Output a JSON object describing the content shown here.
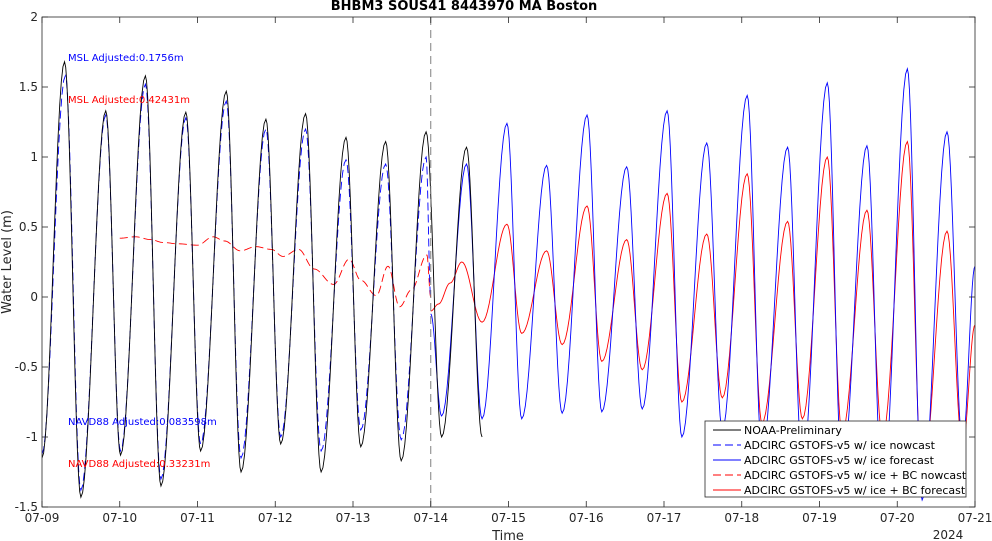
{
  "chart_data": {
    "type": "line",
    "title": "BHBM3 SOUS41 8443970 MA Boston",
    "xlabel": "Time",
    "ylabel": "Water Level (m)",
    "x_tick_labels": [
      "07-09",
      "07-10",
      "07-11",
      "07-12",
      "07-13",
      "07-14",
      "07-15",
      "07-16",
      "07-17",
      "07-18",
      "07-19",
      "07-20",
      "07-21"
    ],
    "x_secondary_label": "2024",
    "xlim_days": [
      0,
      12
    ],
    "ylim": [
      -1.5,
      2
    ],
    "y_ticks": [
      -1.5,
      -1,
      -0.5,
      0,
      0.5,
      1,
      1.5,
      2
    ],
    "y_tick_labels": [
      "-1.5",
      "-1",
      "-0.5",
      "0",
      "0.5",
      "1",
      "1.5",
      "2"
    ],
    "nowcast_forecast_divider": "07-14",
    "grid": false,
    "legend_position": "bottom-right",
    "annotations": [
      {
        "text": "MSL Adjusted:0.1756m",
        "color": "#0000ff"
      },
      {
        "text": "MSL Adjusted:0.42431m",
        "color": "#ff0000"
      },
      {
        "text": "NAVD88 Adjusted:0.083598m",
        "color": "#0000ff"
      },
      {
        "text": "NAVD88 Adjusted:0.33231m",
        "color": "#ff0000"
      }
    ],
    "series": [
      {
        "name": "NOAA-Preliminary",
        "color": "#000000",
        "dash": "solid",
        "x": [
          0.0,
          0.29,
          0.5,
          0.82,
          1.01,
          1.33,
          1.53,
          1.85,
          2.04,
          2.37,
          2.56,
          2.88,
          3.07,
          3.39,
          3.59,
          3.91,
          4.1,
          4.42,
          4.62,
          4.94,
          5.14,
          5.46,
          5.66
        ],
        "y": [
          -1.15,
          1.68,
          -1.43,
          1.33,
          -1.13,
          1.58,
          -1.35,
          1.32,
          -1.1,
          1.47,
          -1.25,
          1.27,
          -1.05,
          1.31,
          -1.25,
          1.14,
          -1.07,
          1.11,
          -1.17,
          1.18,
          -1.0,
          1.07,
          -1.0
        ]
      },
      {
        "name": "ADCIRC GSTOFS-v5 w/ ice nowcast",
        "color": "#0000ff",
        "dash": "dashed",
        "x": [
          0.0,
          0.3,
          0.5,
          0.82,
          1.01,
          1.33,
          1.53,
          1.85,
          2.04,
          2.37,
          2.56,
          2.88,
          3.07,
          3.39,
          3.59,
          3.91,
          4.1,
          4.42,
          4.62,
          4.94,
          5.0
        ],
        "y": [
          -1.12,
          1.58,
          -1.38,
          1.3,
          -1.1,
          1.52,
          -1.3,
          1.28,
          -1.05,
          1.4,
          -1.15,
          1.2,
          -1.0,
          1.2,
          -1.1,
          0.98,
          -0.95,
          0.95,
          -1.02,
          1.0,
          0.0
        ]
      },
      {
        "name": "ADCIRC GSTOFS-v5 w/ ice forecast",
        "color": "#0000ff",
        "dash": "solid",
        "x": [
          5.0,
          5.14,
          5.46,
          5.66,
          5.98,
          6.17,
          6.49,
          6.69,
          7.01,
          7.2,
          7.52,
          7.72,
          8.04,
          8.23,
          8.55,
          8.75,
          9.07,
          9.26,
          9.59,
          9.78,
          10.1,
          10.29,
          10.61,
          10.81,
          11.13,
          11.32,
          11.64,
          11.84,
          12.0
        ],
        "y": [
          -0.12,
          -0.85,
          0.95,
          -0.87,
          1.24,
          -0.87,
          0.94,
          -0.83,
          1.3,
          -0.82,
          0.93,
          -0.8,
          1.33,
          -1.0,
          1.1,
          -0.95,
          1.44,
          -1.1,
          1.07,
          -1.2,
          1.53,
          -1.25,
          1.08,
          -1.4,
          1.63,
          -1.45,
          1.18,
          -1.05,
          0.22
        ]
      },
      {
        "name": "ADCIRC GSTOFS-v5 w/ ice + BC nowcast",
        "color": "#ff0000",
        "dash": "dashed",
        "x": [
          1.0,
          1.2,
          1.4,
          1.55,
          1.75,
          2.0,
          2.2,
          2.35,
          2.55,
          2.75,
          2.95,
          3.1,
          3.3,
          3.5,
          3.75,
          3.95,
          4.1,
          4.3,
          4.45,
          4.6,
          4.75,
          4.95,
          5.0
        ],
        "y": [
          0.42,
          0.43,
          0.41,
          0.39,
          0.38,
          0.37,
          0.43,
          0.4,
          0.33,
          0.36,
          0.34,
          0.29,
          0.34,
          0.2,
          0.09,
          0.27,
          0.12,
          0.01,
          0.22,
          -0.07,
          0.05,
          0.3,
          0.0
        ]
      },
      {
        "name": "ADCIRC GSTOFS-v5 w/ ice + BC forecast",
        "color": "#ff0000",
        "dash": "solid",
        "x": [
          5.0,
          5.1,
          5.25,
          5.4,
          5.66,
          5.98,
          6.17,
          6.49,
          6.69,
          7.01,
          7.2,
          7.52,
          7.72,
          8.04,
          8.23,
          8.55,
          8.75,
          9.07,
          9.26,
          9.59,
          9.78,
          10.1,
          10.29,
          10.61,
          10.81,
          11.13,
          11.32,
          11.64,
          11.84,
          12.0
        ],
        "y": [
          -0.1,
          -0.05,
          0.1,
          0.25,
          -0.18,
          0.52,
          -0.26,
          0.33,
          -0.34,
          0.65,
          -0.46,
          0.41,
          -0.52,
          0.74,
          -0.75,
          0.45,
          -0.72,
          0.88,
          -0.9,
          0.54,
          -0.87,
          1.0,
          -0.97,
          0.62,
          -1.0,
          1.11,
          -1.3,
          0.47,
          -1.07,
          -0.2
        ]
      }
    ]
  }
}
